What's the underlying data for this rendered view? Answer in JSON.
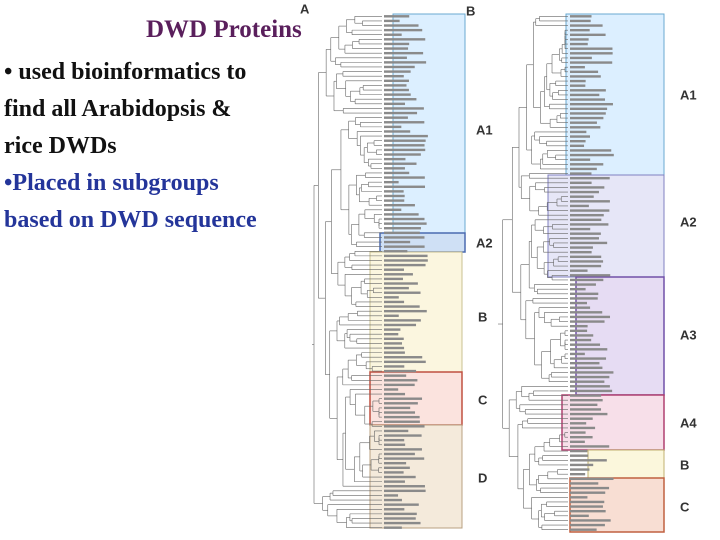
{
  "header": {
    "title": "DWD Proteins"
  },
  "bullets": [
    {
      "lines": [
        "• used bioinformatics to",
        "find all Arabidopsis &",
        "rice DWDs"
      ],
      "color": "#111111"
    },
    {
      "lines": [
        "•Placed in subgroups",
        "based on DWD sequence"
      ],
      "color": "#24359a"
    }
  ],
  "panels": [
    {
      "label": "A",
      "groups": [
        "A1",
        "A2",
        "B",
        "C",
        "D"
      ]
    },
    {
      "label": "B",
      "groups": [
        "A1",
        "A2",
        "A3",
        "A4",
        "B",
        "C"
      ]
    }
  ]
}
